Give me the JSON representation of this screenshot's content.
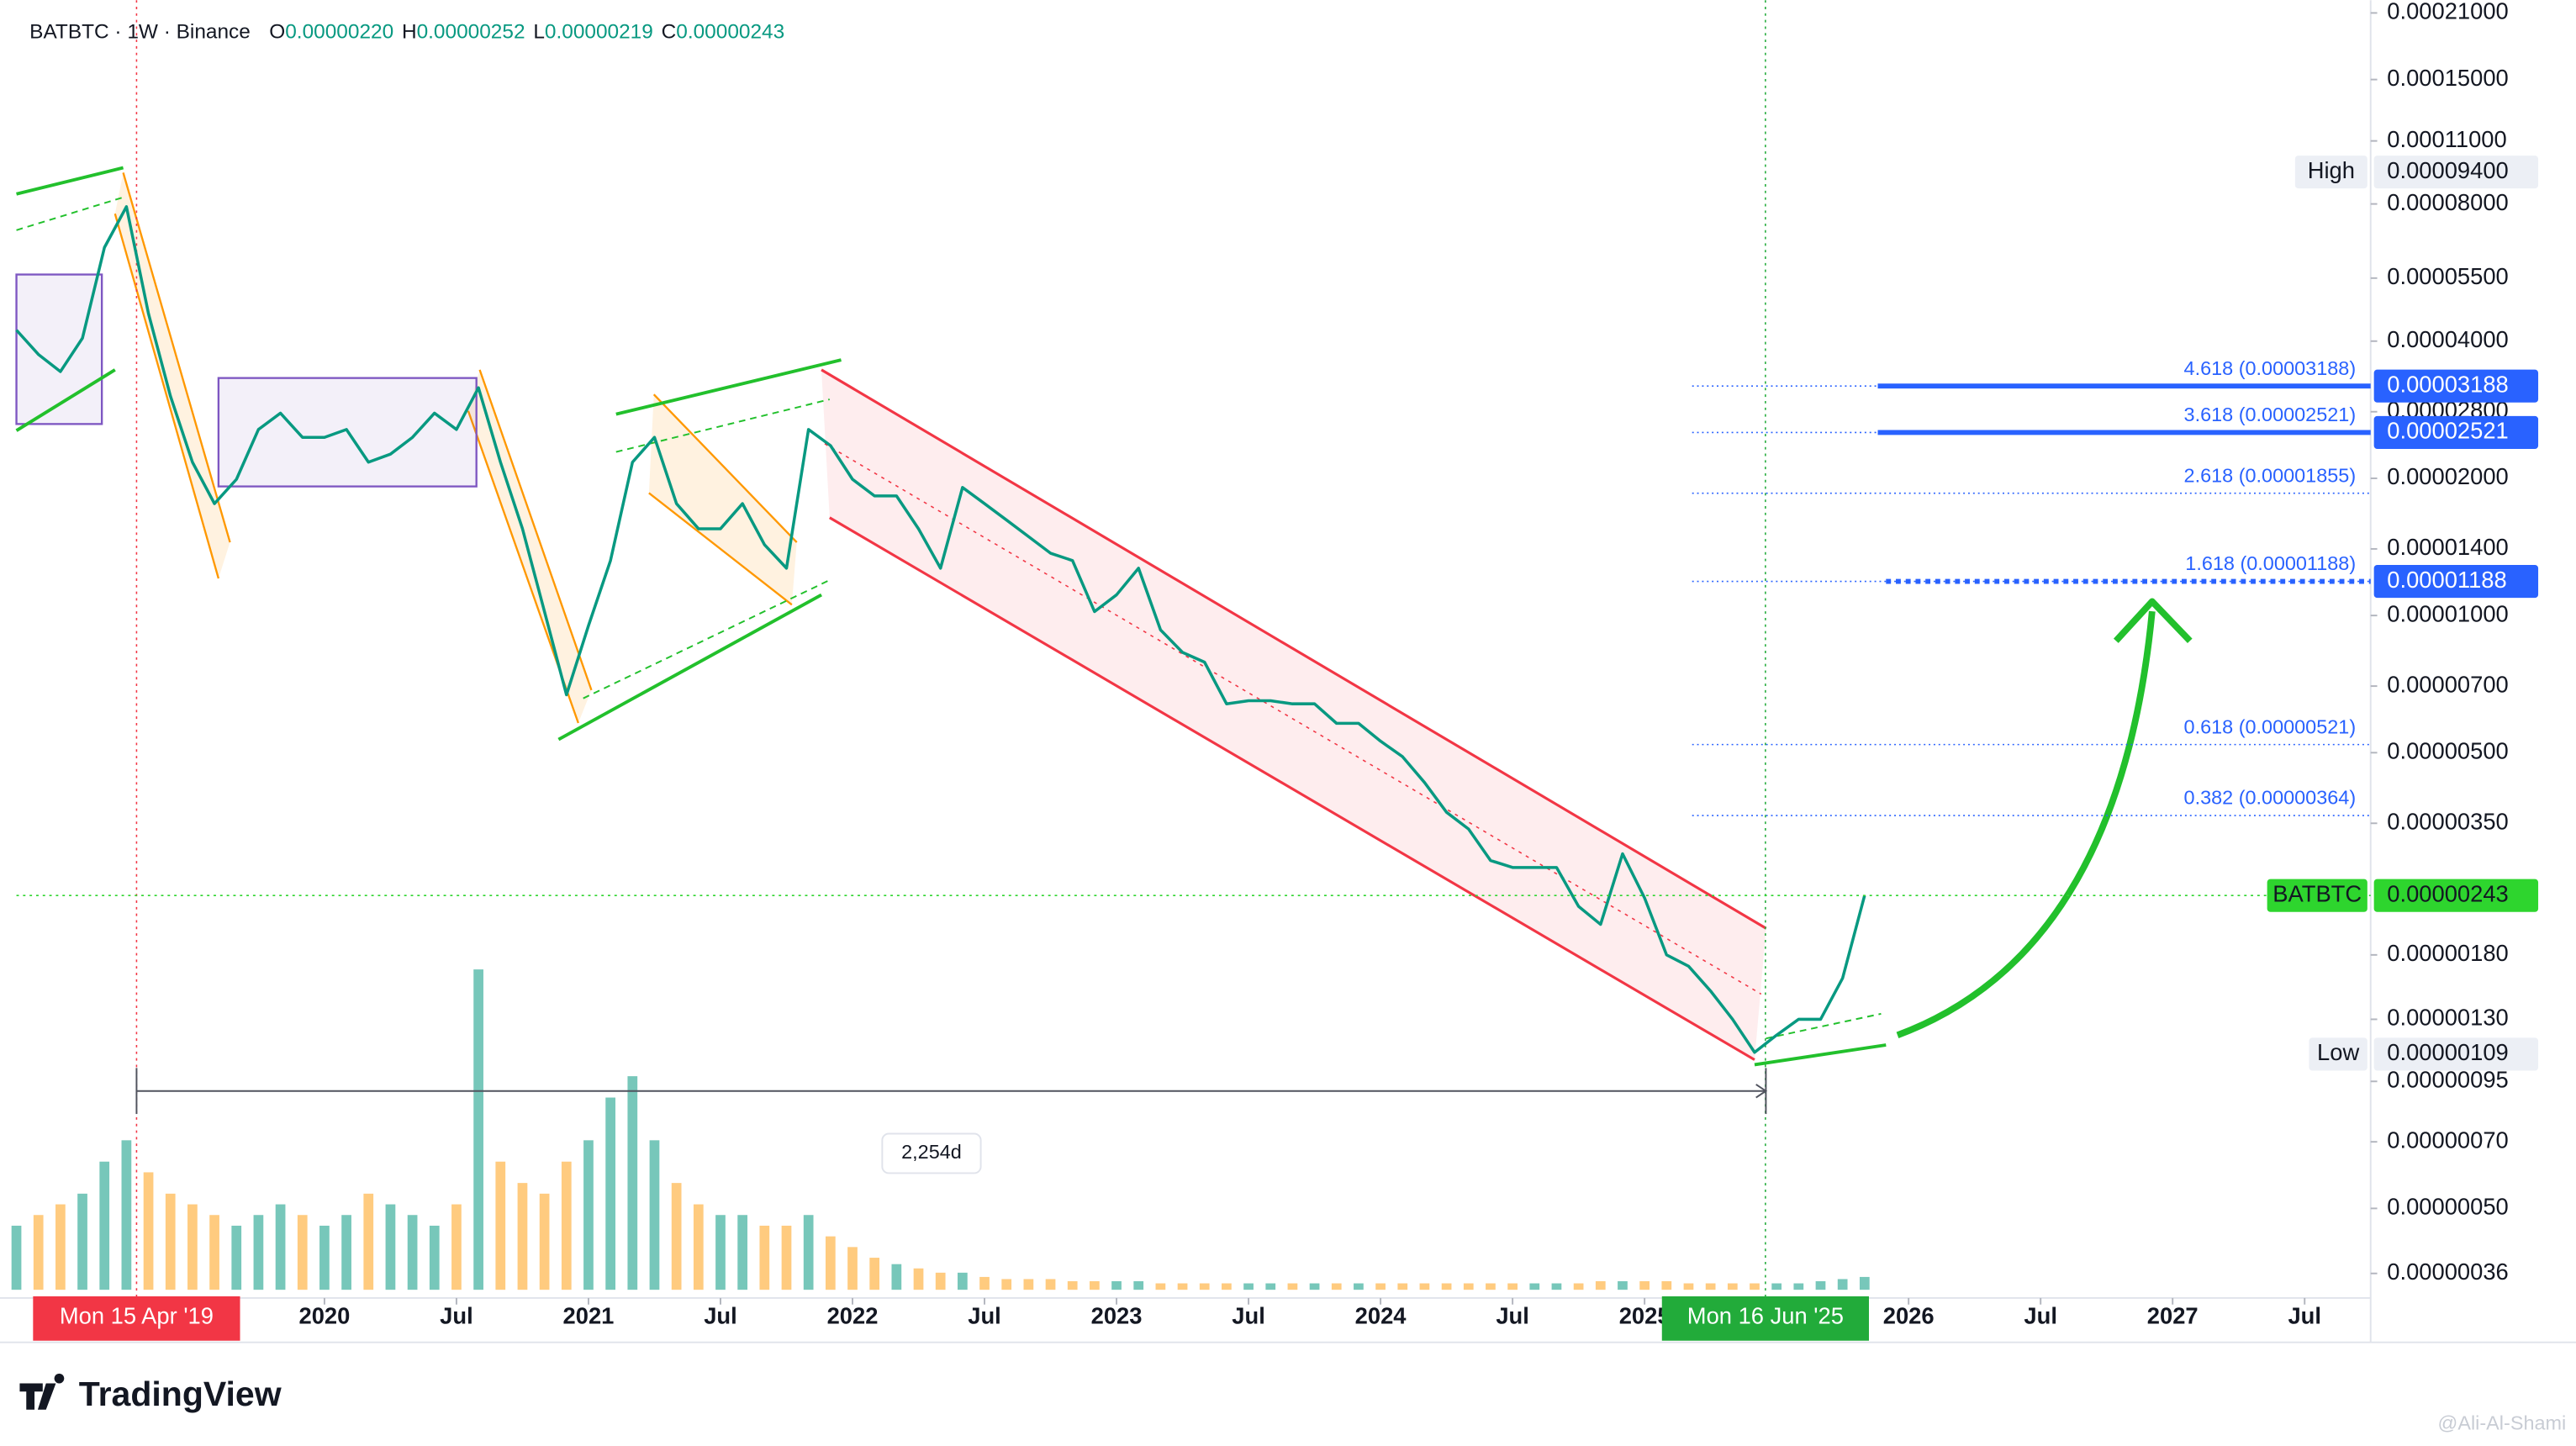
{
  "chart_data": {
    "type": "line",
    "symbol_line": "BATBTC · 1W · Binance",
    "ohlc": [
      {
        "key": "O",
        "label": "0.00000220"
      },
      {
        "key": "H",
        "label": "0.00000252"
      },
      {
        "key": "L",
        "label": "0.00000219"
      },
      {
        "key": "C",
        "label": "0.00000243"
      }
    ],
    "log_scale": true,
    "color": "#089981",
    "x": [
      "2018-11",
      "2018-12",
      "2019-01",
      "2019-02",
      "2019-03",
      "2019-04",
      "2019-05",
      "2019-06",
      "2019-07",
      "2019-08",
      "2019-09",
      "2019-10",
      "2019-11",
      "2019-12",
      "2020-01",
      "2020-02",
      "2020-03",
      "2020-04",
      "2020-05",
      "2020-06",
      "2020-07",
      "2020-08",
      "2020-09",
      "2020-10",
      "2020-11",
      "2020-12",
      "2021-01",
      "2021-02",
      "2021-03",
      "2021-04",
      "2021-05",
      "2021-06",
      "2021-07",
      "2021-08",
      "2021-09",
      "2021-10",
      "2021-11",
      "2021-12",
      "2022-01",
      "2022-02",
      "2022-03",
      "2022-04",
      "2022-05",
      "2022-06",
      "2022-07",
      "2022-08",
      "2022-09",
      "2022-10",
      "2022-11",
      "2022-12",
      "2023-01",
      "2023-02",
      "2023-03",
      "2023-04",
      "2023-05",
      "2023-06",
      "2023-07",
      "2023-08",
      "2023-09",
      "2023-10",
      "2023-11",
      "2023-12",
      "2024-01",
      "2024-02",
      "2024-03",
      "2024-04",
      "2024-05",
      "2024-06",
      "2024-07",
      "2024-08",
      "2024-09",
      "2024-10",
      "2024-11",
      "2024-12",
      "2025-01",
      "2025-02",
      "2025-03",
      "2025-04",
      "2025-05",
      "2025-06",
      "2025-07",
      "2025-08",
      "2025-09",
      "2025-10",
      "2025-11"
    ],
    "values": [
      4.23e-05,
      3.74e-05,
      3.43e-05,
      4.06e-05,
      6.42e-05,
      7.89e-05,
      4.6e-05,
      3.03e-05,
      2.17e-05,
      1.76e-05,
      1.99e-05,
      2.56e-05,
      2.78e-05,
      2.46e-05,
      2.46e-05,
      2.56e-05,
      2.17e-05,
      2.26e-05,
      2.46e-05,
      2.78e-05,
      2.56e-05,
      3.16e-05,
      2.17e-05,
      1.55e-05,
      1.02e-05,
      6.7e-06,
      9.5e-06,
      1.32e-05,
      2.17e-05,
      2.46e-05,
      1.76e-05,
      1.55e-05,
      1.55e-05,
      1.76e-05,
      1.43e-05,
      1.27e-05,
      2.56e-05,
      2.36e-05,
      1.99e-05,
      1.83e-05,
      1.83e-05,
      1.55e-05,
      1.27e-05,
      1.91e-05,
      1.76e-05,
      1.62e-05,
      1.49e-05,
      1.37e-05,
      1.32e-05,
      1.02e-05,
      1.11e-05,
      1.27e-05,
      9.3e-06,
      8.3e-06,
      7.9e-06,
      6.4e-06,
      6.5e-06,
      6.5e-06,
      6.4e-06,
      6.4e-06,
      5.8e-06,
      5.8e-06,
      5.3e-06,
      4.9e-06,
      4.3e-06,
      3.7e-06,
      3.4e-06,
      2.9e-06,
      2.8e-06,
      2.8e-06,
      2.8e-06,
      2.3e-06,
      2.1e-06,
      3e-06,
      2.4e-06,
      1.8e-06,
      1.7e-06,
      1.5e-06,
      1.3e-06,
      1.1e-06,
      1.2e-06,
      1.3e-06,
      1.3e-06,
      1.6e-06,
      2.43e-06
    ],
    "volume": {
      "up_color": "rgba(8,153,129,0.55)",
      "down_color": "rgba(255,152,0,0.5)",
      "values": [
        30,
        35,
        40,
        45,
        60,
        70,
        55,
        45,
        40,
        35,
        30,
        35,
        40,
        35,
        30,
        35,
        45,
        40,
        35,
        30,
        40,
        150,
        60,
        50,
        45,
        60,
        70,
        90,
        100,
        70,
        50,
        40,
        35,
        35,
        30,
        30,
        35,
        25,
        20,
        15,
        12,
        10,
        8,
        8,
        6,
        5,
        5,
        5,
        4,
        4,
        4,
        4,
        3,
        3,
        3,
        3,
        3,
        3,
        3,
        3,
        3,
        3,
        3,
        3,
        3,
        3,
        3,
        3,
        3,
        3,
        3,
        3,
        4,
        4,
        4,
        4,
        3,
        3,
        3,
        3,
        3,
        3,
        4,
        5,
        6
      ]
    },
    "xlim": [
      "2018-11",
      "2027-10"
    ],
    "xticks": [
      {
        "value": "2020-01",
        "label": "2020"
      },
      {
        "value": "2020-07",
        "label": "Jul"
      },
      {
        "value": "2021-01",
        "label": "2021"
      },
      {
        "value": "2021-07",
        "label": "Jul"
      },
      {
        "value": "2022-01",
        "label": "2022"
      },
      {
        "value": "2022-07",
        "label": "Jul"
      },
      {
        "value": "2023-01",
        "label": "2023"
      },
      {
        "value": "2023-07",
        "label": "Jul"
      },
      {
        "value": "2024-01",
        "label": "2024"
      },
      {
        "value": "2024-07",
        "label": "Jul"
      },
      {
        "value": "2025-01",
        "label": "2025"
      },
      {
        "value": "2026-01",
        "label": "2026"
      },
      {
        "value": "2026-07",
        "label": "Jul"
      },
      {
        "value": "2027-01",
        "label": "2027"
      },
      {
        "value": "2027-07",
        "label": "Jul"
      }
    ],
    "ylim": [
      3.18e-07,
      0.000224
    ],
    "yticks": [
      {
        "value": 0.00021,
        "label": "0.00021000"
      },
      {
        "value": 0.00015,
        "label": "0.00015000"
      },
      {
        "value": 0.00011,
        "label": "0.00011000"
      },
      {
        "value": 8e-05,
        "label": "0.00008000"
      },
      {
        "value": 5.5e-05,
        "label": "0.00005500"
      },
      {
        "value": 4e-05,
        "label": "0.00004000"
      },
      {
        "value": 2.8e-05,
        "label": "0.00002800"
      },
      {
        "value": 2e-05,
        "label": "0.00002000"
      },
      {
        "value": 1.4e-05,
        "label": "0.00001400"
      },
      {
        "value": 1e-05,
        "label": "0.00001000"
      },
      {
        "value": 7e-06,
        "label": "0.00000700"
      },
      {
        "value": 5e-06,
        "label": "0.00000500"
      },
      {
        "value": 3.5e-06,
        "label": "0.00000350"
      },
      {
        "value": 1.8e-06,
        "label": "0.00000180"
      },
      {
        "value": 1.3e-06,
        "label": "0.00000130"
      },
      {
        "value": 9.5e-07,
        "label": "0.00000095"
      },
      {
        "value": 7e-07,
        "label": "0.00000070"
      },
      {
        "value": 5e-07,
        "label": "0.00000050"
      },
      {
        "value": 3.6e-07,
        "label": "0.00000036"
      }
    ],
    "fib_levels": [
      {
        "ratio_label": "4.618 (0.00003188)",
        "value": 3.188e-05,
        "price_label": "0.00003188",
        "line": "solid"
      },
      {
        "ratio_label": "3.618 (0.00002521)",
        "value": 2.521e-05,
        "price_label": "0.00002521",
        "line": "solid"
      },
      {
        "ratio_label": "2.618 (0.00001855)",
        "value": 1.855e-05
      },
      {
        "ratio_label": "1.618 (0.00001188)",
        "value": 1.188e-05,
        "price_label": "0.00001188",
        "line": "dashed"
      },
      {
        "ratio_label": "0.618 (0.00000521)",
        "value": 5.21e-06
      },
      {
        "ratio_label": "0.382 (0.00000364)",
        "value": 3.64e-06
      }
    ],
    "fib_color": "#2962ff",
    "markers": [
      {
        "name": "High",
        "value": 9.4e-05,
        "label": "0.00009400",
        "color": "#eceff5"
      },
      {
        "name": "Low",
        "value": 1.09e-06,
        "label": "0.00000109",
        "color": "#eceff5"
      },
      {
        "name": "BATBTC",
        "value": 2.43e-06,
        "label": "0.00000243",
        "color": "#2ed52e"
      }
    ],
    "date_markers": [
      {
        "date": "2019-04-15",
        "label": "Mon 15 Apr '19",
        "color": "#f23645"
      },
      {
        "date": "2025-06-16",
        "label": "Mon 16 Jun '25",
        "color": "#22ab3a"
      }
    ],
    "measurement": {
      "label": "2,254d",
      "days": 2254
    },
    "brand": "TradingView",
    "watermark": "@Ali-Al-Shami"
  }
}
